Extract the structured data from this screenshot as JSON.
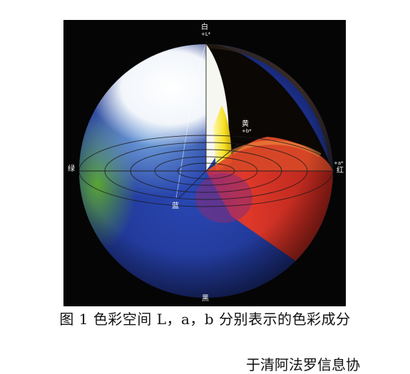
{
  "figure": {
    "labels": {
      "white": "白",
      "white_axis": "+L*",
      "yellow": "黄",
      "yellow_axis": "+b*",
      "green": "绿",
      "red": "红",
      "red_axis": "+a*",
      "blue": "蓝",
      "black": "黑"
    },
    "colors": {
      "white": "#ffffff",
      "yellow": "#f4e020",
      "red": "#e0392a",
      "green": "#4f9a2c",
      "blue": "#2040a8",
      "black": "#000000"
    }
  },
  "caption": "图 1 色彩空间 L，a，b 分别表示的色彩成分",
  "footer_text": "于清阿法罗信息协"
}
